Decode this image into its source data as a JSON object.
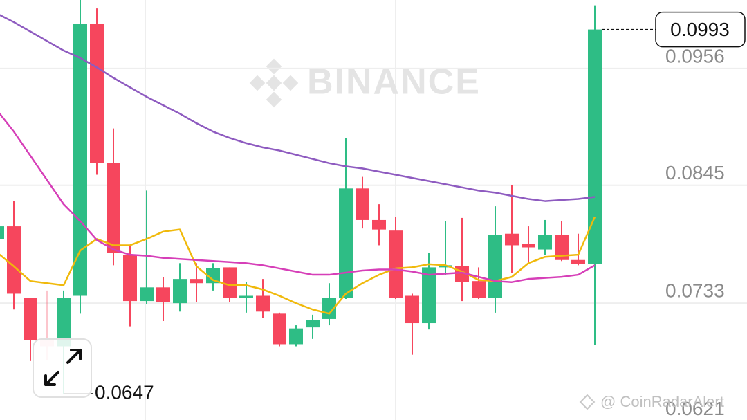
{
  "chart_data": {
    "type": "candlestick",
    "watermark": "BINANCE",
    "credit": "@ CoinRadarAlert",
    "up_color": "#2ebd85",
    "down_color": "#f6465d",
    "grid": true,
    "ylim": [
      0.0622,
      0.1021
    ],
    "yticks": [
      0.0956,
      0.0845,
      0.0733,
      0.0621
    ],
    "last_price": 0.0993,
    "low_marker": 0.0647,
    "open": [
      0.0794,
      0.0806,
      0.0738,
      0.0698,
      0.0692,
      0.074,
      0.0998,
      0.0866,
      0.0779,
      0.0735,
      0.0748,
      0.0733,
      0.0756,
      0.0752,
      0.0767,
      0.0738,
      0.074,
      0.0723,
      0.0694,
      0.071,
      0.0718,
      0.0738,
      0.0842,
      0.0812,
      0.0802,
      0.074,
      0.0714,
      0.0767,
      0.0768,
      0.0754,
      0.0738,
      0.0799,
      0.0789,
      0.0784,
      0.0798,
      0.0774,
      0.077
    ],
    "high": [
      0.0806,
      0.083,
      0.0738,
      0.0745,
      0.0745,
      0.1021,
      0.1013,
      0.0899,
      0.0788,
      0.084,
      0.0758,
      0.0771,
      0.0771,
      0.0771,
      0.0767,
      0.0753,
      0.0756,
      0.0724,
      0.0712,
      0.0722,
      0.0752,
      0.089,
      0.0853,
      0.0827,
      0.0815,
      0.0742,
      0.0781,
      0.0811,
      0.0814,
      0.0767,
      0.0825,
      0.0845,
      0.0806,
      0.0812,
      0.0811,
      0.0799,
      0.1016
    ],
    "low": [
      0.0794,
      0.0727,
      0.0678,
      0.0679,
      0.0647,
      0.0723,
      0.0855,
      0.0769,
      0.0711,
      0.0732,
      0.0716,
      0.0725,
      0.0734,
      0.0745,
      0.0734,
      0.0724,
      0.0719,
      0.0692,
      0.0692,
      0.0699,
      0.0712,
      0.0737,
      0.0804,
      0.0788,
      0.0737,
      0.0684,
      0.0708,
      0.076,
      0.0735,
      0.0737,
      0.0724,
      0.0762,
      0.0771,
      0.0779,
      0.0773,
      0.0769,
      0.0693
    ],
    "close": [
      0.0806,
      0.0742,
      0.0698,
      0.0692,
      0.0738,
      0.0998,
      0.0866,
      0.0781,
      0.0735,
      0.0748,
      0.0734,
      0.0756,
      0.0752,
      0.0766,
      0.0738,
      0.074,
      0.0725,
      0.0694,
      0.0709,
      0.0717,
      0.0738,
      0.0842,
      0.0812,
      0.0803,
      0.0738,
      0.0714,
      0.0767,
      0.0769,
      0.0753,
      0.0738,
      0.0798,
      0.0788,
      0.0786,
      0.0798,
      0.0774,
      0.077,
      0.0993
    ],
    "series": [
      {
        "color": "#f0b90b",
        "values": [
          0.0781,
          0.0768,
          0.0754,
          0.0752,
          0.075,
          0.0783,
          0.0794,
          0.0788,
          0.0788,
          0.0794,
          0.0801,
          0.0803,
          0.0768,
          0.0755,
          0.075,
          0.075,
          0.0746,
          0.074,
          0.0733,
          0.0727,
          0.0723,
          0.0742,
          0.0752,
          0.076,
          0.0766,
          0.0767,
          0.077,
          0.0769,
          0.0763,
          0.0755,
          0.0754,
          0.0758,
          0.0771,
          0.0777,
          0.0778,
          0.0779,
          0.0815
        ]
      },
      {
        "color": "#d63fb8",
        "values": [
          0.0916,
          0.0896,
          0.0873,
          0.085,
          0.0827,
          0.0811,
          0.0793,
          0.0784,
          0.0779,
          0.0778,
          0.0776,
          0.0775,
          0.0774,
          0.0773,
          0.0772,
          0.0771,
          0.0769,
          0.0766,
          0.0763,
          0.076,
          0.076,
          0.0762,
          0.0764,
          0.0765,
          0.0765,
          0.0763,
          0.076,
          0.0761,
          0.0762,
          0.0758,
          0.0754,
          0.0753,
          0.0756,
          0.0757,
          0.0758,
          0.076,
          0.0769
        ]
      },
      {
        "color": "#8e5bc0",
        "values": [
          0.1008,
          0.1,
          0.0991,
          0.0982,
          0.0973,
          0.0966,
          0.0957,
          0.0947,
          0.0938,
          0.0929,
          0.0921,
          0.0913,
          0.0904,
          0.0896,
          0.089,
          0.0885,
          0.0881,
          0.0878,
          0.0874,
          0.087,
          0.0866,
          0.0863,
          0.0861,
          0.0858,
          0.0855,
          0.0852,
          0.0849,
          0.0846,
          0.0843,
          0.084,
          0.0838,
          0.0835,
          0.0832,
          0.083,
          0.0831,
          0.0832,
          0.0834
        ]
      }
    ]
  }
}
